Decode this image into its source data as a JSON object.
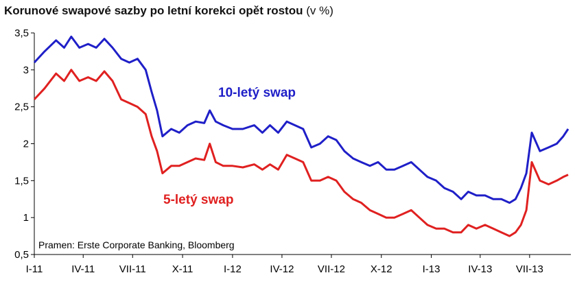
{
  "title": {
    "main": "Korunové swapové sazby po letní korekci opět rostou",
    "unit": "(v %)"
  },
  "source_note": "Pramen: Erste Corporate Banking, Bloomberg",
  "chart_data": {
    "type": "line",
    "title": "Korunové swapové sazby po letní korekci opět rostou (v %)",
    "xlabel": "",
    "ylabel": "",
    "ylim": [
      0.5,
      3.5
    ],
    "yticks": [
      0.5,
      1,
      1.5,
      2,
      2.5,
      3,
      3.5
    ],
    "ytick_labels": [
      "0,5",
      "1",
      "1,5",
      "2",
      "2,5",
      "3",
      "3,5"
    ],
    "xlim": [
      "2011-01-01",
      "2013-09-15"
    ],
    "xticks": [
      "2011-01-01",
      "2011-04-01",
      "2011-07-01",
      "2011-10-01",
      "2012-01-01",
      "2012-04-01",
      "2012-07-01",
      "2012-10-01",
      "2013-01-01",
      "2013-04-01",
      "2013-07-01"
    ],
    "xtick_labels": [
      "I-11",
      "IV-11",
      "VII-11",
      "X-11",
      "I-12",
      "IV-12",
      "VII-12",
      "X-12",
      "I-13",
      "IV-13",
      "VII-13"
    ],
    "grid": false,
    "series": [
      {
        "name": "10-letý swap",
        "color": "#1f1fc8",
        "x": [
          "2011-01-01",
          "2011-01-20",
          "2011-02-10",
          "2011-02-25",
          "2011-03-10",
          "2011-03-25",
          "2011-04-10",
          "2011-04-25",
          "2011-05-10",
          "2011-05-25",
          "2011-06-10",
          "2011-06-25",
          "2011-07-10",
          "2011-07-25",
          "2011-08-05",
          "2011-08-15",
          "2011-08-25",
          "2011-09-10",
          "2011-09-25",
          "2011-10-10",
          "2011-10-25",
          "2011-11-10",
          "2011-11-20",
          "2011-12-01",
          "2011-12-15",
          "2012-01-01",
          "2012-01-20",
          "2012-02-10",
          "2012-02-25",
          "2012-03-10",
          "2012-03-25",
          "2012-04-10",
          "2012-04-25",
          "2012-05-10",
          "2012-05-25",
          "2012-06-10",
          "2012-06-25",
          "2012-07-10",
          "2012-07-25",
          "2012-08-10",
          "2012-08-25",
          "2012-09-10",
          "2012-09-25",
          "2012-10-10",
          "2012-10-25",
          "2012-11-10",
          "2012-11-25",
          "2012-12-10",
          "2012-12-25",
          "2013-01-10",
          "2013-01-25",
          "2013-02-10",
          "2013-02-25",
          "2013-03-10",
          "2013-03-25",
          "2013-04-10",
          "2013-04-25",
          "2013-05-10",
          "2013-05-25",
          "2013-06-05",
          "2013-06-15",
          "2013-06-25",
          "2013-07-05",
          "2013-07-20",
          "2013-08-05",
          "2013-08-20",
          "2013-09-01",
          "2013-09-10"
        ],
        "values": [
          3.1,
          3.25,
          3.4,
          3.3,
          3.45,
          3.3,
          3.35,
          3.3,
          3.42,
          3.3,
          3.15,
          3.1,
          3.15,
          3.0,
          2.7,
          2.45,
          2.1,
          2.2,
          2.15,
          2.25,
          2.3,
          2.28,
          2.45,
          2.3,
          2.25,
          2.2,
          2.2,
          2.25,
          2.15,
          2.25,
          2.15,
          2.3,
          2.25,
          2.2,
          1.95,
          2.0,
          2.1,
          2.05,
          1.9,
          1.8,
          1.75,
          1.7,
          1.75,
          1.65,
          1.65,
          1.7,
          1.75,
          1.65,
          1.55,
          1.5,
          1.4,
          1.35,
          1.25,
          1.35,
          1.3,
          1.3,
          1.25,
          1.25,
          1.2,
          1.25,
          1.4,
          1.6,
          2.15,
          1.9,
          1.95,
          2.0,
          2.1,
          2.2
        ]
      },
      {
        "name": "5-letý swap",
        "color": "#e02020",
        "x": [
          "2011-01-01",
          "2011-01-20",
          "2011-02-10",
          "2011-02-25",
          "2011-03-10",
          "2011-03-25",
          "2011-04-10",
          "2011-04-25",
          "2011-05-10",
          "2011-05-25",
          "2011-06-10",
          "2011-06-25",
          "2011-07-10",
          "2011-07-25",
          "2011-08-05",
          "2011-08-15",
          "2011-08-25",
          "2011-09-10",
          "2011-09-25",
          "2011-10-10",
          "2011-10-25",
          "2011-11-10",
          "2011-11-20",
          "2011-12-01",
          "2011-12-15",
          "2012-01-01",
          "2012-01-20",
          "2012-02-10",
          "2012-02-25",
          "2012-03-10",
          "2012-03-25",
          "2012-04-10",
          "2012-04-25",
          "2012-05-10",
          "2012-05-25",
          "2012-06-10",
          "2012-06-25",
          "2012-07-10",
          "2012-07-25",
          "2012-08-10",
          "2012-08-25",
          "2012-09-10",
          "2012-09-25",
          "2012-10-10",
          "2012-10-25",
          "2012-11-10",
          "2012-11-25",
          "2012-12-10",
          "2012-12-25",
          "2013-01-10",
          "2013-01-25",
          "2013-02-10",
          "2013-02-25",
          "2013-03-10",
          "2013-03-25",
          "2013-04-10",
          "2013-04-25",
          "2013-05-10",
          "2013-05-25",
          "2013-06-05",
          "2013-06-15",
          "2013-06-25",
          "2013-07-05",
          "2013-07-20",
          "2013-08-05",
          "2013-08-20",
          "2013-09-01",
          "2013-09-10"
        ],
        "values": [
          2.6,
          2.75,
          2.95,
          2.85,
          3.0,
          2.85,
          2.9,
          2.85,
          2.98,
          2.85,
          2.6,
          2.55,
          2.5,
          2.4,
          2.1,
          1.9,
          1.6,
          1.7,
          1.7,
          1.75,
          1.8,
          1.78,
          2.0,
          1.75,
          1.7,
          1.7,
          1.68,
          1.72,
          1.65,
          1.72,
          1.65,
          1.85,
          1.8,
          1.75,
          1.5,
          1.5,
          1.55,
          1.5,
          1.35,
          1.25,
          1.2,
          1.1,
          1.05,
          1.0,
          1.0,
          1.05,
          1.1,
          1.0,
          0.9,
          0.85,
          0.85,
          0.8,
          0.8,
          0.9,
          0.85,
          0.9,
          0.85,
          0.8,
          0.75,
          0.8,
          0.9,
          1.1,
          1.75,
          1.5,
          1.45,
          1.5,
          1.55,
          1.58
        ]
      }
    ]
  }
}
